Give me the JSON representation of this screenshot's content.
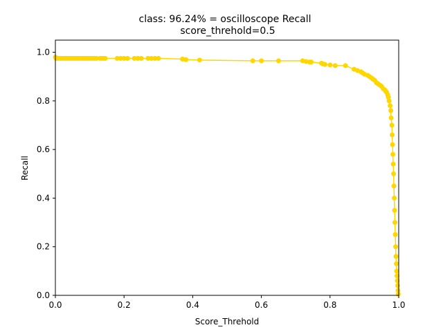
{
  "chart_data": {
    "type": "line",
    "title_line1": "class: 96.24% = oscilloscope Recall",
    "title_line2": "score_threhold=0.5",
    "xlabel": "Score_Threhold",
    "ylabel": "Recall",
    "xlim": [
      0,
      1
    ],
    "ylim": [
      0,
      1.05
    ],
    "xticks": [
      0.0,
      0.2,
      0.4,
      0.6,
      0.8,
      1.0
    ],
    "xtick_labels": [
      "0.0",
      "0.2",
      "0.4",
      "0.6",
      "0.8",
      "1.0"
    ],
    "yticks": [
      0.0,
      0.2,
      0.4,
      0.6,
      0.8,
      1.0
    ],
    "ytick_labels": [
      "0.0",
      "0.2",
      "0.4",
      "0.6",
      "0.8",
      "1.0"
    ],
    "grid": false,
    "series": [
      {
        "color": "#ffd700",
        "x": [
          0.0,
          0.002,
          0.005,
          0.01,
          0.015,
          0.02,
          0.025,
          0.03,
          0.035,
          0.04,
          0.045,
          0.05,
          0.055,
          0.06,
          0.065,
          0.07,
          0.075,
          0.08,
          0.085,
          0.09,
          0.095,
          0.1,
          0.105,
          0.11,
          0.115,
          0.12,
          0.13,
          0.135,
          0.14,
          0.145,
          0.18,
          0.19,
          0.2,
          0.21,
          0.23,
          0.24,
          0.25,
          0.27,
          0.28,
          0.29,
          0.3,
          0.37,
          0.38,
          0.42,
          0.575,
          0.6,
          0.65,
          0.72,
          0.73,
          0.74,
          0.745,
          0.775,
          0.78,
          0.785,
          0.8,
          0.815,
          0.845,
          0.87,
          0.88,
          0.89,
          0.895,
          0.9,
          0.91,
          0.915,
          0.92,
          0.925,
          0.93,
          0.935,
          0.94,
          0.945,
          0.95,
          0.955,
          0.96,
          0.962,
          0.965,
          0.968,
          0.97,
          0.972,
          0.975,
          0.977,
          0.978,
          0.98,
          0.981,
          0.982,
          0.983,
          0.984,
          0.985,
          0.986,
          0.987,
          0.988,
          0.989,
          0.99,
          0.991,
          0.992,
          0.993,
          0.994,
          0.995,
          0.996,
          0.997,
          0.998,
          0.999
        ],
        "y": [
          0.98,
          0.975,
          0.975,
          0.975,
          0.975,
          0.975,
          0.975,
          0.975,
          0.975,
          0.975,
          0.975,
          0.975,
          0.975,
          0.975,
          0.975,
          0.975,
          0.975,
          0.975,
          0.975,
          0.975,
          0.975,
          0.975,
          0.975,
          0.975,
          0.975,
          0.975,
          0.975,
          0.975,
          0.975,
          0.975,
          0.975,
          0.975,
          0.975,
          0.975,
          0.975,
          0.975,
          0.975,
          0.975,
          0.975,
          0.975,
          0.975,
          0.972,
          0.97,
          0.968,
          0.965,
          0.965,
          0.965,
          0.965,
          0.962,
          0.96,
          0.96,
          0.955,
          0.952,
          0.95,
          0.948,
          0.945,
          0.945,
          0.93,
          0.925,
          0.92,
          0.915,
          0.91,
          0.905,
          0.9,
          0.895,
          0.89,
          0.885,
          0.875,
          0.87,
          0.865,
          0.86,
          0.85,
          0.845,
          0.84,
          0.835,
          0.825,
          0.815,
          0.8,
          0.78,
          0.76,
          0.73,
          0.7,
          0.66,
          0.62,
          0.58,
          0.54,
          0.5,
          0.45,
          0.4,
          0.35,
          0.3,
          0.25,
          0.2,
          0.16,
          0.13,
          0.1,
          0.08,
          0.06,
          0.04,
          0.02,
          0.005
        ]
      }
    ]
  }
}
